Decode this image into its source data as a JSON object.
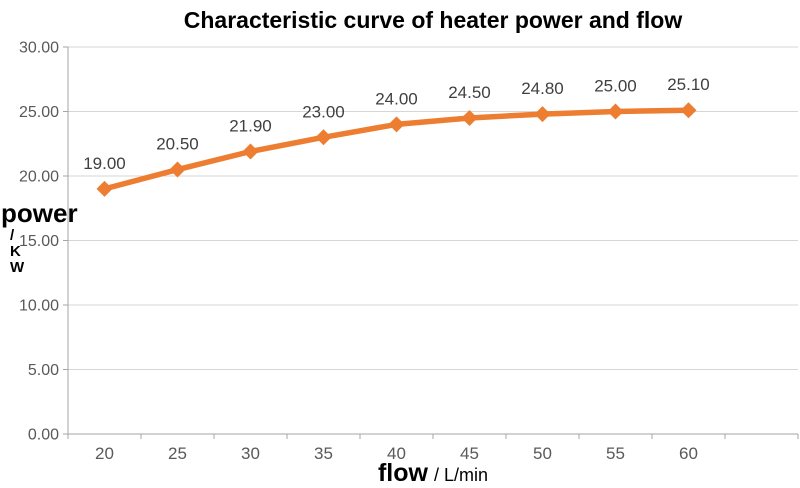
{
  "chart_data": {
    "type": "line",
    "title": "Characteristic curve of heater power and flow",
    "xlabel": "flow",
    "xlabel_unit": "/ L/min",
    "ylabel": "power",
    "ylabel_unit_lines": [
      "/",
      "K",
      "W"
    ],
    "categories": [
      "20",
      "25",
      "30",
      "35",
      "40",
      "45",
      "50",
      "55",
      "60"
    ],
    "values": [
      19.0,
      20.5,
      21.9,
      23.0,
      24.0,
      24.5,
      24.8,
      25.0,
      25.1
    ],
    "data_labels": [
      "19.00",
      "20.50",
      "21.90",
      "23.00",
      "24.00",
      "24.50",
      "24.80",
      "25.00",
      "25.10"
    ],
    "yticks": [
      0,
      5,
      10,
      15,
      20,
      25,
      30
    ],
    "ytick_labels": [
      "0.00",
      "5.00",
      "10.00",
      "15.00",
      "20.00",
      "25.00",
      "30.00"
    ],
    "ylim": [
      0,
      30
    ],
    "grid": "horizontal",
    "legend": "none",
    "marker": "diamond",
    "colors": {
      "series": "#ED7D31",
      "gridline": "#D6D6D6",
      "axis": "#A6A6A6",
      "tick_label": "#595959",
      "data_label": "#404040",
      "title": "#000000"
    }
  }
}
